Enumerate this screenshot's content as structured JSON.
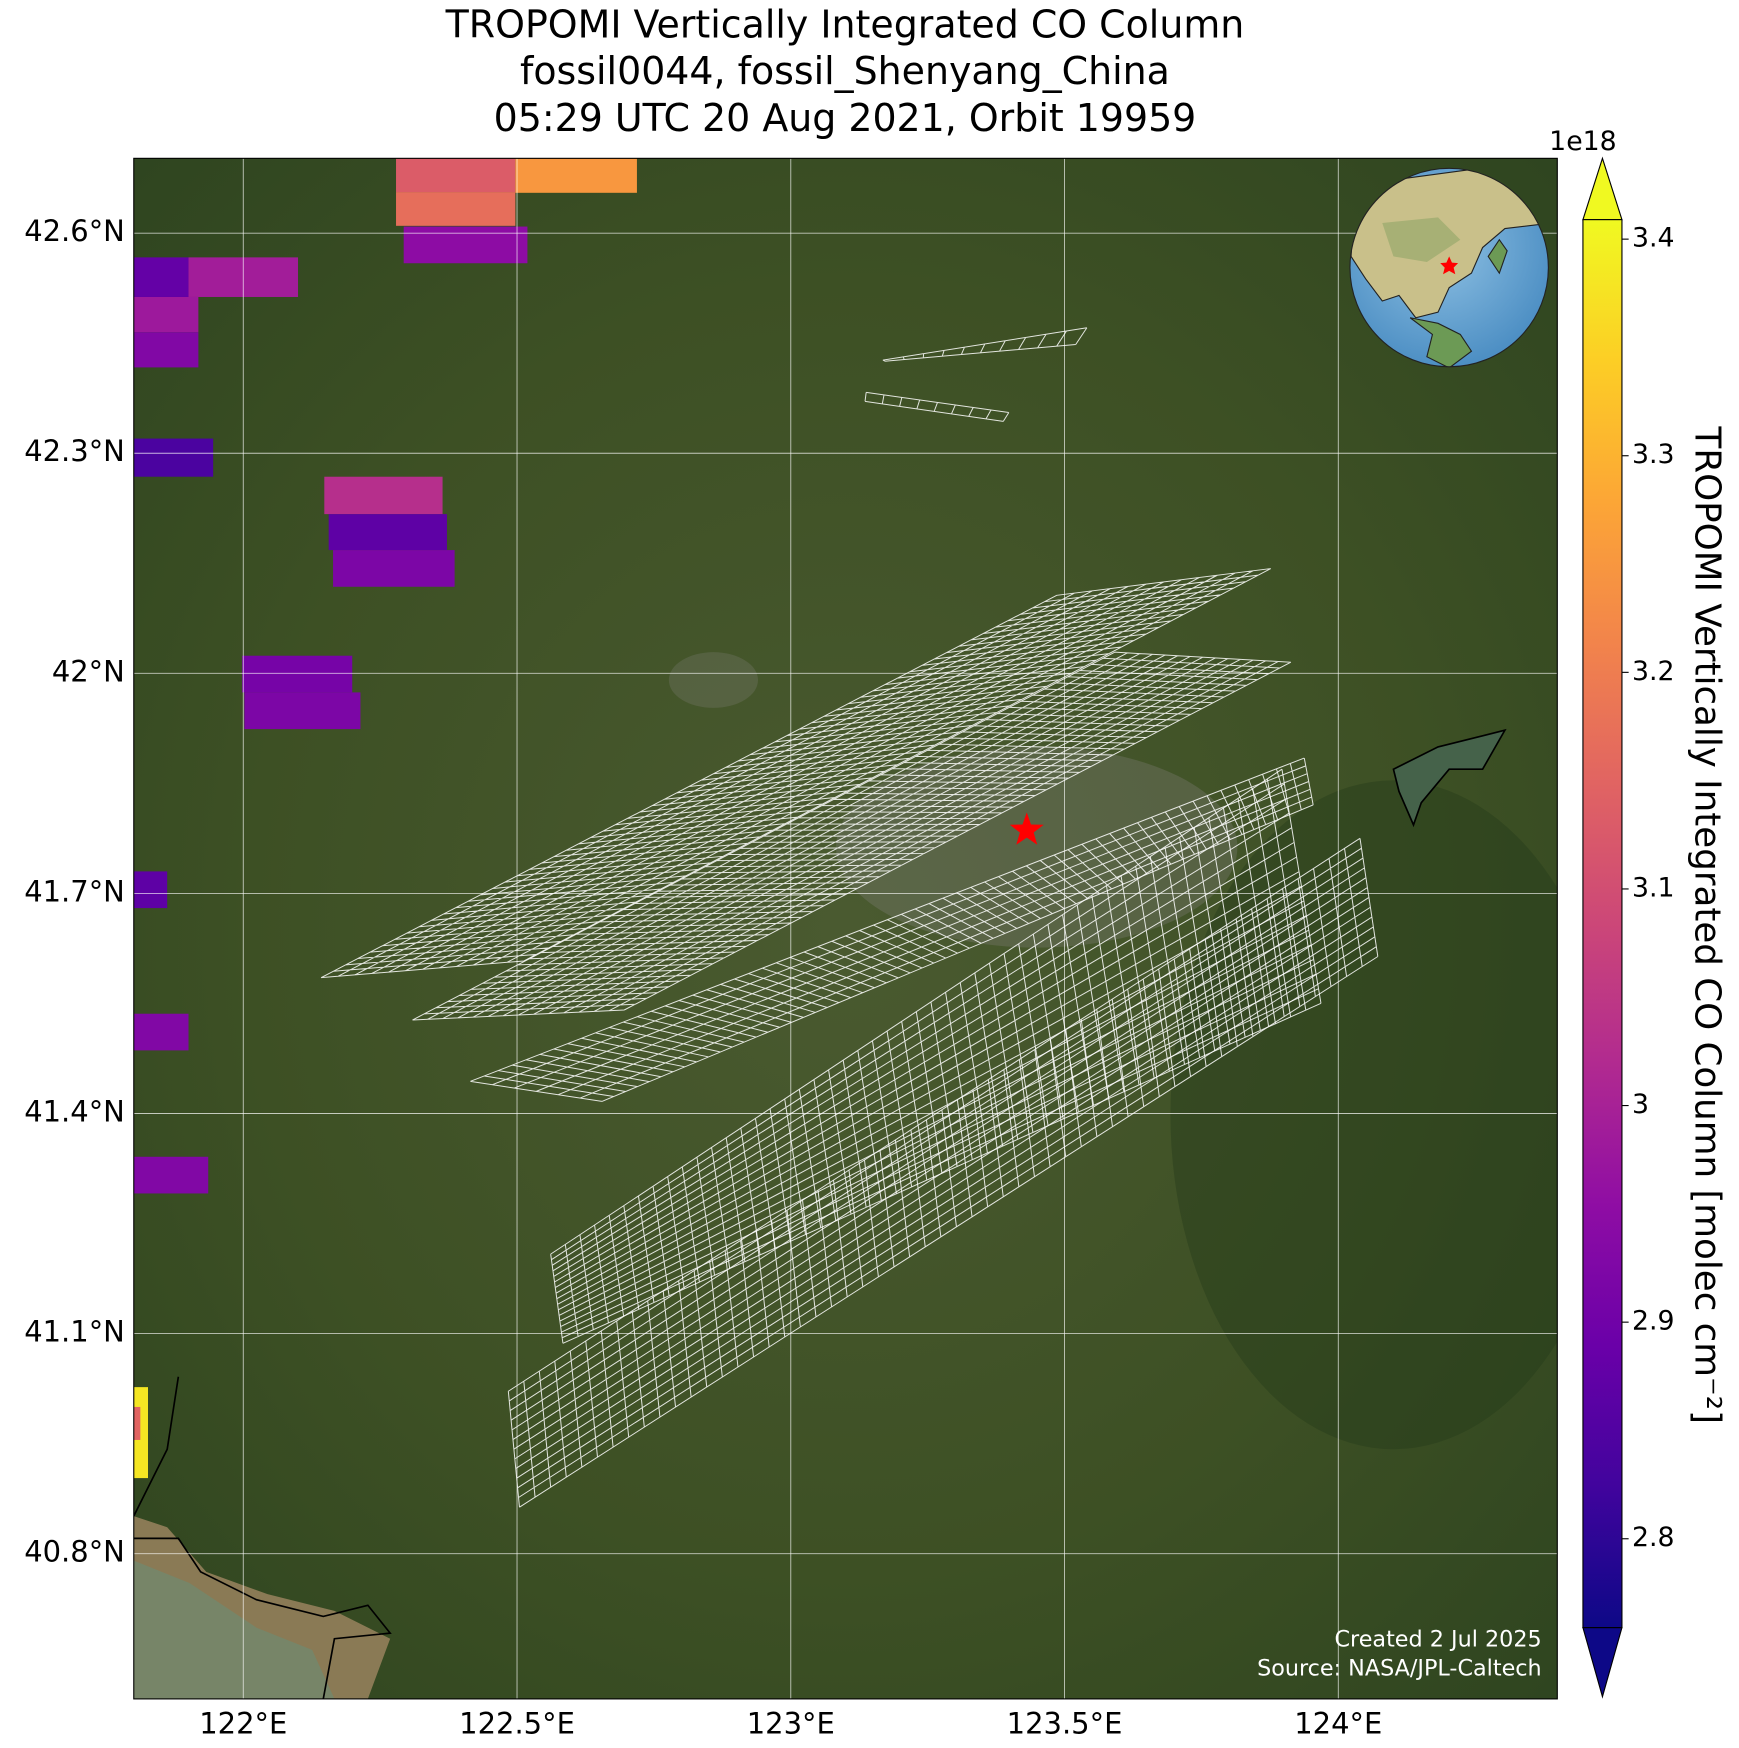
{
  "chart_data": {
    "type": "map",
    "title": [
      "TROPOMI Vertically Integrated CO Column",
      "fossil0044, fossil_Shenyang_China",
      "05:29 UTC 20 Aug 2021, Orbit 19959"
    ],
    "xlim": [
      121.8,
      124.4
    ],
    "ylim": [
      40.602,
      42.702
    ],
    "xticks": [
      {
        "value": 122,
        "label": "122°E"
      },
      {
        "value": 122.5,
        "label": "122.5°E"
      },
      {
        "value": 123,
        "label": "123°E"
      },
      {
        "value": 123.5,
        "label": "123.5°E"
      },
      {
        "value": 124,
        "label": "124°E"
      }
    ],
    "yticks": [
      {
        "value": 40.8,
        "label": "40.8°N"
      },
      {
        "value": 41.1,
        "label": "41.1°N"
      },
      {
        "value": 41.4,
        "label": "41.4°N"
      },
      {
        "value": 41.7,
        "label": "41.7°N"
      },
      {
        "value": 42.0,
        "label": "42°N"
      },
      {
        "value": 42.3,
        "label": "42.3°N"
      },
      {
        "value": 42.6,
        "label": "42.6°N"
      }
    ],
    "grid": true,
    "colormap": "plasma",
    "colorbar": {
      "label": "TROPOMI Vertically Integrated CO Column [molec cm⁻²]",
      "offset_label": "1e18",
      "lim": [
        2.759,
        3.409
      ],
      "ticks": [
        2.8,
        2.9,
        3.0,
        3.1,
        3.2,
        3.3,
        3.4
      ]
    },
    "pixels": [
      {
        "lon": [
          122.279,
          122.497
        ],
        "lat": [
          42.656,
          42.702
        ],
        "value": 3.13
      },
      {
        "lon": [
          122.279,
          122.497
        ],
        "lat": [
          42.61,
          42.656
        ],
        "value": 3.17
      },
      {
        "lon": [
          122.497,
          122.719
        ],
        "lat": [
          42.655,
          42.702
        ],
        "value": 3.25
      },
      {
        "lon": [
          122.293,
          122.519
        ],
        "lat": [
          42.559,
          42.609
        ],
        "value": 2.95
      },
      {
        "lon": [
          121.8,
          121.9
        ],
        "lat": [
          42.513,
          42.567
        ],
        "value": 2.88
      },
      {
        "lon": [
          121.9,
          122.1
        ],
        "lat": [
          42.513,
          42.567
        ],
        "value": 2.99
      },
      {
        "lon": [
          121.8,
          121.918
        ],
        "lat": [
          42.465,
          42.513
        ],
        "value": 2.98
      },
      {
        "lon": [
          121.8,
          121.918
        ],
        "lat": [
          42.417,
          42.465
        ],
        "value": 2.93
      },
      {
        "lon": [
          121.8,
          121.945
        ],
        "lat": [
          42.268,
          42.32
        ],
        "value": 2.84
      },
      {
        "lon": [
          122.148,
          122.364
        ],
        "lat": [
          42.217,
          42.268
        ],
        "value": 3.03
      },
      {
        "lon": [
          122.156,
          122.372
        ],
        "lat": [
          42.168,
          42.217
        ],
        "value": 2.87
      },
      {
        "lon": [
          122.164,
          122.386
        ],
        "lat": [
          42.118,
          42.168
        ],
        "value": 2.92
      },
      {
        "lon": [
          121.998,
          122.199
        ],
        "lat": [
          41.974,
          42.024
        ],
        "value": 2.91
      },
      {
        "lon": [
          122.002,
          122.214
        ],
        "lat": [
          41.924,
          41.974
        ],
        "value": 2.92
      },
      {
        "lon": [
          121.8,
          121.861
        ],
        "lat": [
          41.68,
          41.73
        ],
        "value": 2.87
      },
      {
        "lon": [
          121.8,
          121.9
        ],
        "lat": [
          41.486,
          41.536
        ],
        "value": 2.93
      },
      {
        "lon": [
          121.8,
          121.936
        ],
        "lat": [
          41.291,
          41.341
        ],
        "value": 2.93
      },
      {
        "lon": [
          121.8,
          121.826
        ],
        "lat": [
          40.903,
          41.027
        ],
        "value": 3.38
      },
      {
        "lon": [
          121.8,
          121.812
        ],
        "lat": [
          40.955,
          41.0
        ],
        "value": 3.15
      }
    ],
    "site": {
      "lon": 123.431,
      "lat": 41.786
    },
    "footer": [
      "Created 2 Jul 2025",
      "Source: NASA/JPL-Caltech"
    ]
  }
}
